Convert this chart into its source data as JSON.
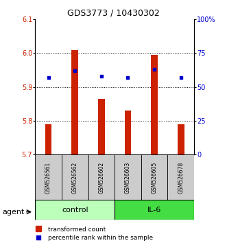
{
  "title": "GDS3773 / 10430302",
  "samples": [
    "GSM526561",
    "GSM526562",
    "GSM526602",
    "GSM526603",
    "GSM526605",
    "GSM526678"
  ],
  "bar_values": [
    5.79,
    6.01,
    5.865,
    5.83,
    5.995,
    5.79
  ],
  "bar_base": 5.7,
  "percentile_values": [
    57,
    62,
    58,
    57,
    63,
    57
  ],
  "ylim_left": [
    5.7,
    6.1
  ],
  "ylim_right": [
    0,
    100
  ],
  "yticks_left": [
    5.7,
    5.8,
    5.9,
    6.0,
    6.1
  ],
  "yticks_right": [
    0,
    25,
    50,
    75,
    100
  ],
  "ytick_labels_right": [
    "0",
    "25",
    "50",
    "75",
    "100%"
  ],
  "bar_color": "#cc2200",
  "dot_color": "#0000cc",
  "control_label": "control",
  "il6_label": "IL-6",
  "agent_label": "agent",
  "control_color": "#bbffbb",
  "il6_color": "#44dd44",
  "legend_bar_label": "transformed count",
  "legend_dot_label": "percentile rank within the sample",
  "title_fontsize": 9,
  "tick_fontsize": 7,
  "tick_label_color_left": "#cc2200",
  "tick_label_color_right": "#0000cc",
  "sample_box_color": "#cccccc",
  "bar_width": 0.25
}
